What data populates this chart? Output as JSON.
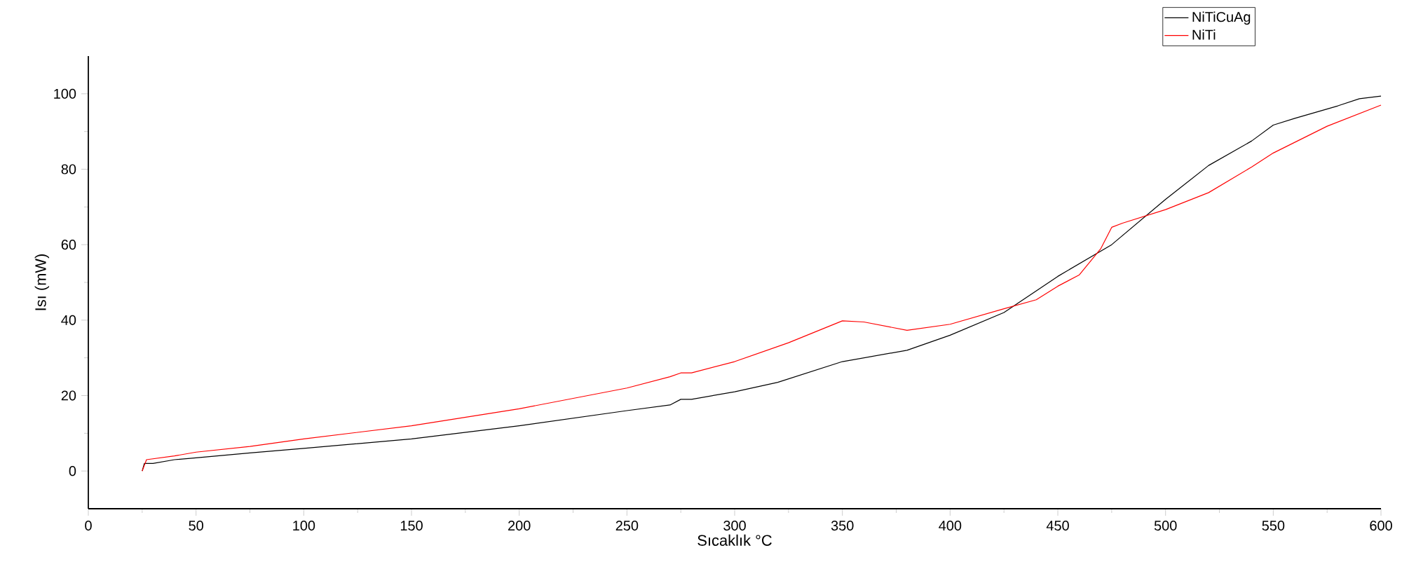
{
  "chart_data": {
    "type": "line",
    "xlabel": "Sıcaklık °C",
    "ylabel": "Isı (mW)",
    "xlim": [
      0,
      600
    ],
    "ylim": [
      -10,
      110
    ],
    "xticks": [
      0,
      50,
      100,
      150,
      200,
      250,
      300,
      350,
      400,
      450,
      500,
      550,
      600
    ],
    "yticks": [
      0,
      20,
      40,
      60,
      80,
      100
    ],
    "grid": false,
    "legend": "top right",
    "marker": "none",
    "line_style": "solid",
    "series": [
      {
        "name": "NiTiCuAg",
        "color": "#000000",
        "x": [
          25,
          26,
          30,
          40,
          50,
          75,
          100,
          150,
          200,
          250,
          270,
          275,
          280,
          300,
          320,
          350,
          380,
          400,
          425,
          450,
          475,
          500,
          520,
          540,
          550,
          560,
          580,
          590,
          600
        ],
        "values": [
          0,
          2,
          2,
          3,
          3.5,
          4.8,
          6,
          8.5,
          12,
          16,
          17.5,
          19,
          19,
          21,
          23.5,
          29,
          32,
          36,
          42,
          51.6,
          60,
          72,
          81,
          87.5,
          91.7,
          93.5,
          96.8,
          98.7,
          99.4
        ]
      },
      {
        "name": "NiTi",
        "color": "#ff0000",
        "x": [
          25,
          26,
          27,
          40,
          50,
          75,
          100,
          150,
          200,
          250,
          270,
          275,
          280,
          300,
          325,
          350,
          360,
          380,
          400,
          425,
          440,
          450,
          460,
          470,
          475,
          480,
          500,
          520,
          540,
          550,
          575,
          600
        ],
        "values": [
          0,
          1.5,
          3,
          4,
          5,
          6.5,
          8.5,
          12,
          16.5,
          22,
          25,
          26,
          26,
          29,
          34,
          39.8,
          39.5,
          37.3,
          38.9,
          43,
          45.4,
          49,
          52,
          59,
          64.6,
          65.7,
          69.3,
          73.8,
          80.6,
          84.3,
          91.4,
          97
        ]
      }
    ]
  }
}
